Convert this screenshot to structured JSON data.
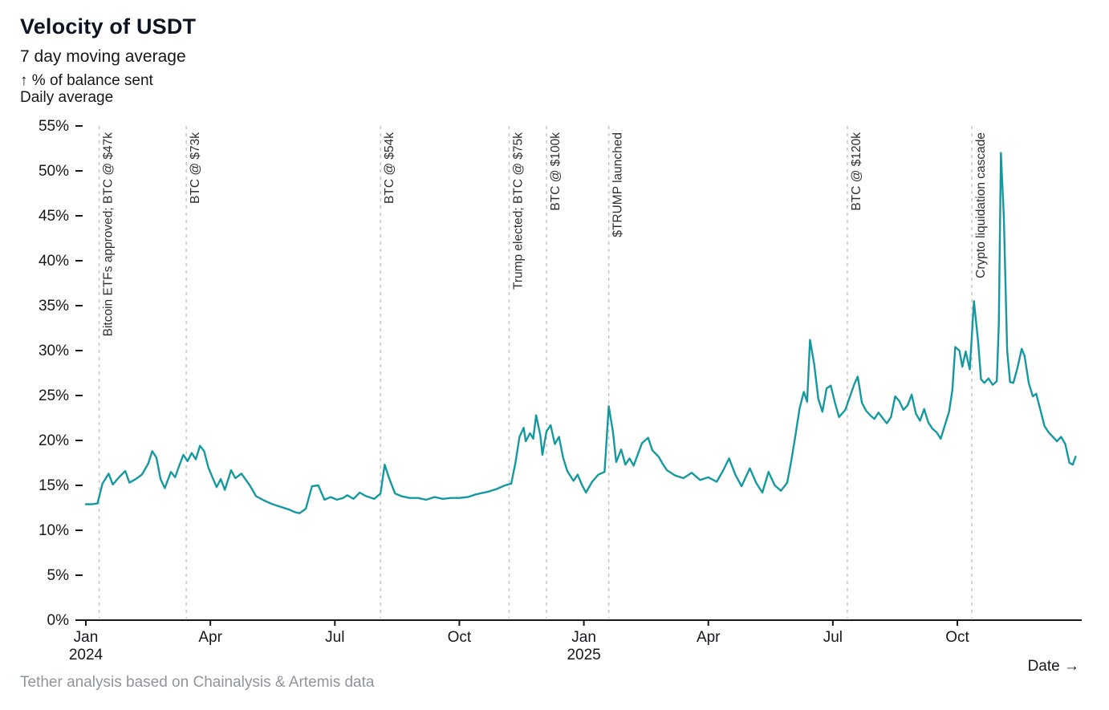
{
  "page": {
    "title": "Velocity of USDT",
    "subtitle": "7 day moving average",
    "y_axis_caption_line1": "↑ % of balance sent",
    "y_axis_caption_line2": "Daily average",
    "x_axis_caption": "Date →",
    "source_note": "Tether analysis based on Chainalysis & Artemis data"
  },
  "colors": {
    "line": "#1599a0",
    "annotation_line": "#c6c6c6",
    "annotation_text": "#2b2f33",
    "axis": "#15181d",
    "tick_text": "#15181d",
    "title": "#0d1422",
    "muted": "#8f959c"
  },
  "chart_data": {
    "type": "line",
    "title": "Velocity of USDT",
    "subtitle": "7 day moving average",
    "ylabel": "% of balance sent, daily average",
    "xlabel": "Date",
    "x_unit": "months since 2024-01-01",
    "xlim": [
      0,
      23.9
    ],
    "ylim": [
      0,
      55
    ],
    "grid": false,
    "ytick_suffix": "%",
    "yticks": [
      0,
      5,
      10,
      15,
      20,
      25,
      30,
      35,
      40,
      45,
      50,
      55
    ],
    "xticks": [
      {
        "pos": 0,
        "label": "Jan",
        "year": "2024"
      },
      {
        "pos": 3,
        "label": "Apr",
        "year": ""
      },
      {
        "pos": 6,
        "label": "Jul",
        "year": ""
      },
      {
        "pos": 9,
        "label": "Oct",
        "year": ""
      },
      {
        "pos": 12,
        "label": "Jan",
        "year": "2025"
      },
      {
        "pos": 15,
        "label": "Apr",
        "year": ""
      },
      {
        "pos": 18,
        "label": "Jul",
        "year": ""
      },
      {
        "pos": 21,
        "label": "Oct",
        "year": ""
      }
    ],
    "annotations": [
      {
        "x": 0.32,
        "label": "Bitcoin ETFs approved; BTC @ $47k"
      },
      {
        "x": 2.42,
        "label": "BTC @ $73k"
      },
      {
        "x": 7.1,
        "label": "BTC @ $54k"
      },
      {
        "x": 10.2,
        "label": "Trump elected; BTC @ $75k"
      },
      {
        "x": 11.1,
        "label": "BTC @ $100k"
      },
      {
        "x": 12.6,
        "label": "$TRUMP launched"
      },
      {
        "x": 18.35,
        "label": "BTC @ $120k"
      },
      {
        "x": 21.35,
        "label": "Crypto liquidation cascade"
      }
    ],
    "series": [
      {
        "name": "USDT velocity (7d MA, % of balance sent)",
        "points": [
          [
            0.0,
            12.9
          ],
          [
            0.15,
            12.9
          ],
          [
            0.28,
            13.0
          ],
          [
            0.4,
            15.2
          ],
          [
            0.55,
            16.3
          ],
          [
            0.65,
            15.1
          ],
          [
            0.8,
            15.9
          ],
          [
            0.95,
            16.6
          ],
          [
            1.05,
            15.3
          ],
          [
            1.2,
            15.7
          ],
          [
            1.35,
            16.2
          ],
          [
            1.5,
            17.4
          ],
          [
            1.6,
            18.8
          ],
          [
            1.7,
            18.1
          ],
          [
            1.8,
            15.7
          ],
          [
            1.9,
            14.7
          ],
          [
            2.05,
            16.5
          ],
          [
            2.15,
            15.9
          ],
          [
            2.25,
            17.2
          ],
          [
            2.35,
            18.4
          ],
          [
            2.45,
            17.7
          ],
          [
            2.55,
            18.6
          ],
          [
            2.65,
            17.9
          ],
          [
            2.75,
            19.4
          ],
          [
            2.85,
            18.8
          ],
          [
            2.95,
            17.0
          ],
          [
            3.05,
            15.9
          ],
          [
            3.15,
            14.8
          ],
          [
            3.25,
            15.7
          ],
          [
            3.35,
            14.5
          ],
          [
            3.5,
            16.7
          ],
          [
            3.6,
            15.8
          ],
          [
            3.75,
            16.3
          ],
          [
            3.95,
            15.0
          ],
          [
            4.1,
            13.8
          ],
          [
            4.3,
            13.3
          ],
          [
            4.5,
            12.9
          ],
          [
            4.7,
            12.6
          ],
          [
            4.9,
            12.3
          ],
          [
            5.05,
            12.0
          ],
          [
            5.15,
            11.9
          ],
          [
            5.3,
            12.4
          ],
          [
            5.45,
            14.9
          ],
          [
            5.6,
            15.0
          ],
          [
            5.75,
            13.4
          ],
          [
            5.9,
            13.7
          ],
          [
            6.05,
            13.4
          ],
          [
            6.2,
            13.6
          ],
          [
            6.3,
            13.9
          ],
          [
            6.45,
            13.5
          ],
          [
            6.6,
            14.2
          ],
          [
            6.75,
            13.8
          ],
          [
            6.95,
            13.5
          ],
          [
            7.1,
            14.1
          ],
          [
            7.2,
            17.3
          ],
          [
            7.3,
            15.9
          ],
          [
            7.45,
            14.1
          ],
          [
            7.6,
            13.8
          ],
          [
            7.8,
            13.6
          ],
          [
            8.0,
            13.6
          ],
          [
            8.2,
            13.4
          ],
          [
            8.4,
            13.7
          ],
          [
            8.6,
            13.5
          ],
          [
            8.8,
            13.6
          ],
          [
            9.0,
            13.6
          ],
          [
            9.2,
            13.7
          ],
          [
            9.4,
            14.0
          ],
          [
            9.7,
            14.3
          ],
          [
            9.9,
            14.6
          ],
          [
            10.1,
            15.0
          ],
          [
            10.25,
            15.2
          ],
          [
            10.35,
            17.5
          ],
          [
            10.45,
            20.4
          ],
          [
            10.55,
            21.4
          ],
          [
            10.6,
            19.9
          ],
          [
            10.7,
            20.8
          ],
          [
            10.78,
            20.2
          ],
          [
            10.85,
            22.8
          ],
          [
            10.95,
            20.6
          ],
          [
            11.0,
            18.4
          ],
          [
            11.1,
            21.0
          ],
          [
            11.2,
            21.7
          ],
          [
            11.3,
            19.6
          ],
          [
            11.4,
            20.4
          ],
          [
            11.5,
            18.1
          ],
          [
            11.6,
            16.6
          ],
          [
            11.75,
            15.5
          ],
          [
            11.85,
            16.2
          ],
          [
            11.95,
            15.1
          ],
          [
            12.05,
            14.2
          ],
          [
            12.2,
            15.4
          ],
          [
            12.35,
            16.2
          ],
          [
            12.5,
            16.5
          ],
          [
            12.6,
            23.8
          ],
          [
            12.7,
            21.0
          ],
          [
            12.78,
            17.6
          ],
          [
            12.9,
            19.0
          ],
          [
            13.0,
            17.3
          ],
          [
            13.1,
            18.0
          ],
          [
            13.2,
            17.2
          ],
          [
            13.4,
            19.7
          ],
          [
            13.55,
            20.3
          ],
          [
            13.65,
            18.9
          ],
          [
            13.8,
            18.2
          ],
          [
            13.9,
            17.4
          ],
          [
            14.0,
            16.7
          ],
          [
            14.2,
            16.1
          ],
          [
            14.4,
            15.8
          ],
          [
            14.6,
            16.4
          ],
          [
            14.8,
            15.6
          ],
          [
            15.0,
            15.9
          ],
          [
            15.2,
            15.4
          ],
          [
            15.35,
            16.6
          ],
          [
            15.5,
            18.0
          ],
          [
            15.65,
            16.2
          ],
          [
            15.8,
            14.9
          ],
          [
            16.0,
            16.9
          ],
          [
            16.15,
            15.3
          ],
          [
            16.3,
            14.2
          ],
          [
            16.45,
            16.5
          ],
          [
            16.6,
            15.0
          ],
          [
            16.75,
            14.4
          ],
          [
            16.9,
            15.3
          ],
          [
            17.0,
            17.8
          ],
          [
            17.1,
            20.6
          ],
          [
            17.2,
            23.6
          ],
          [
            17.3,
            25.4
          ],
          [
            17.38,
            24.3
          ],
          [
            17.45,
            31.2
          ],
          [
            17.55,
            28.5
          ],
          [
            17.65,
            24.6
          ],
          [
            17.75,
            23.2
          ],
          [
            17.85,
            25.8
          ],
          [
            17.95,
            26.1
          ],
          [
            18.05,
            24.2
          ],
          [
            18.15,
            22.6
          ],
          [
            18.3,
            23.4
          ],
          [
            18.42,
            25.0
          ],
          [
            18.52,
            26.3
          ],
          [
            18.6,
            27.1
          ],
          [
            18.7,
            24.2
          ],
          [
            18.8,
            23.3
          ],
          [
            18.9,
            22.8
          ],
          [
            19.0,
            22.4
          ],
          [
            19.1,
            23.1
          ],
          [
            19.2,
            22.5
          ],
          [
            19.3,
            21.9
          ],
          [
            19.4,
            22.6
          ],
          [
            19.5,
            24.9
          ],
          [
            19.6,
            24.4
          ],
          [
            19.7,
            23.4
          ],
          [
            19.8,
            23.9
          ],
          [
            19.9,
            25.1
          ],
          [
            20.0,
            23.0
          ],
          [
            20.1,
            22.2
          ],
          [
            20.2,
            23.5
          ],
          [
            20.3,
            22.0
          ],
          [
            20.4,
            21.3
          ],
          [
            20.5,
            20.9
          ],
          [
            20.6,
            20.2
          ],
          [
            20.7,
            21.7
          ],
          [
            20.8,
            23.2
          ],
          [
            20.88,
            25.6
          ],
          [
            20.95,
            30.4
          ],
          [
            21.05,
            30.0
          ],
          [
            21.12,
            28.2
          ],
          [
            21.2,
            29.9
          ],
          [
            21.3,
            27.9
          ],
          [
            21.4,
            35.5
          ],
          [
            21.5,
            31.0
          ],
          [
            21.57,
            26.8
          ],
          [
            21.65,
            26.4
          ],
          [
            21.75,
            26.9
          ],
          [
            21.85,
            26.2
          ],
          [
            21.95,
            26.6
          ],
          [
            22.0,
            33.0
          ],
          [
            22.05,
            52.0
          ],
          [
            22.12,
            45.0
          ],
          [
            22.2,
            30.0
          ],
          [
            22.27,
            26.5
          ],
          [
            22.35,
            26.4
          ],
          [
            22.45,
            28.1
          ],
          [
            22.55,
            30.2
          ],
          [
            22.62,
            29.4
          ],
          [
            22.72,
            26.4
          ],
          [
            22.82,
            24.9
          ],
          [
            22.9,
            25.2
          ],
          [
            23.0,
            23.4
          ],
          [
            23.1,
            21.6
          ],
          [
            23.2,
            20.9
          ],
          [
            23.3,
            20.4
          ],
          [
            23.4,
            19.9
          ],
          [
            23.5,
            20.4
          ],
          [
            23.6,
            19.6
          ],
          [
            23.7,
            17.5
          ],
          [
            23.78,
            17.3
          ],
          [
            23.85,
            18.2
          ]
        ]
      }
    ]
  }
}
